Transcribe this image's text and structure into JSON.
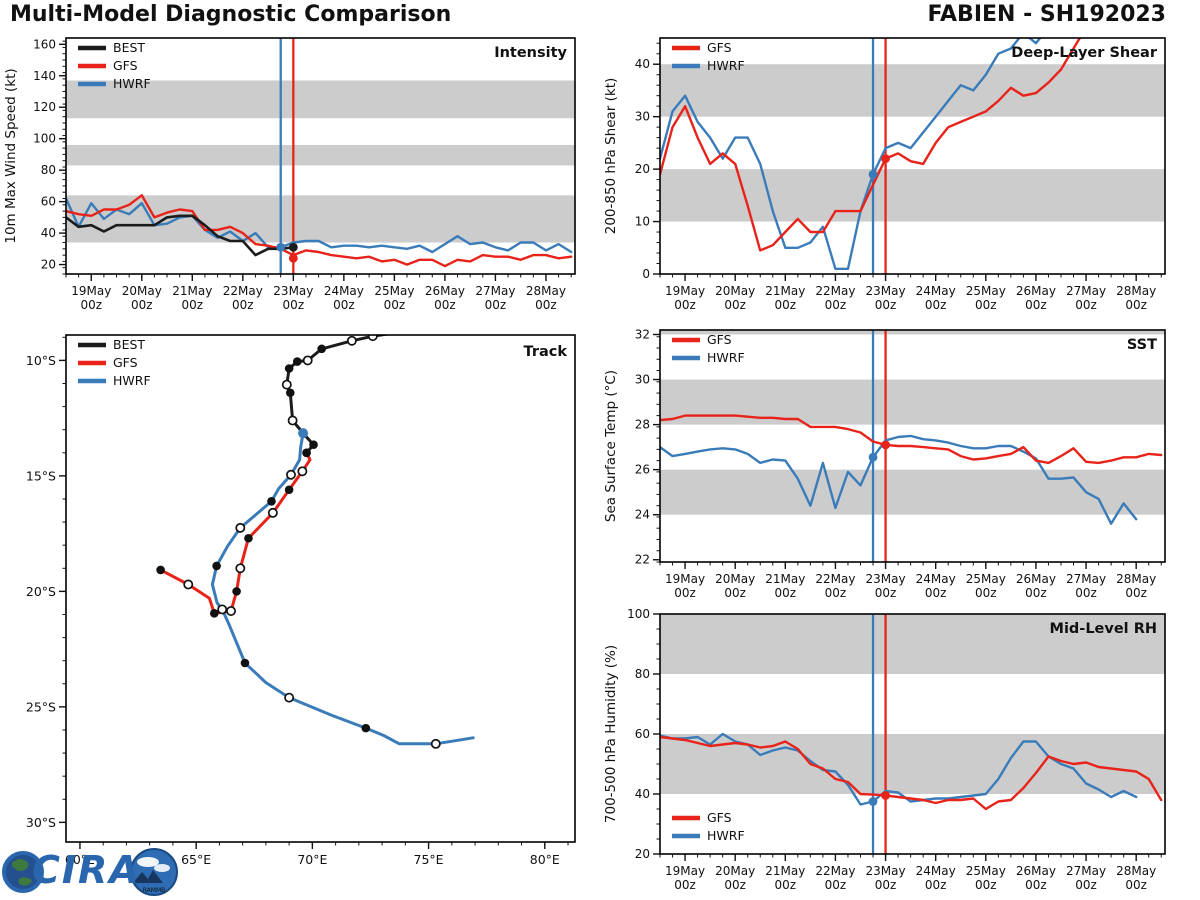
{
  "page": {
    "title": "Multi-Model Diagnostic Comparison",
    "storm_id": "FABIEN - SH192023",
    "logo": {
      "cira_text": "CIRA",
      "rammb_text": "RAMMB"
    },
    "colors": {
      "best": "#1c1c1c",
      "gfs": "#e8231a",
      "hwrf": "#3a7cba",
      "band": "#cccccc"
    }
  },
  "chart_data": [
    {
      "id": "intensity",
      "type": "line",
      "title": "Intensity",
      "ylabel": "10m Max Wind Speed (kt)",
      "xlim": [
        0,
        40.3
      ],
      "ylim": [
        14,
        164
      ],
      "yticks": [
        20,
        40,
        60,
        80,
        100,
        120,
        140,
        160
      ],
      "yminor": 4,
      "bands": [
        [
          34,
          64
        ],
        [
          83,
          96
        ],
        [
          113,
          137
        ]
      ],
      "xticks": {
        "t": [
          2,
          6,
          10,
          14,
          18,
          22,
          26,
          30,
          34,
          38
        ],
        "labels": [
          "19May",
          "20May",
          "21May",
          "22May",
          "23May",
          "24May",
          "25May",
          "26May",
          "27May",
          "28May"
        ],
        "sub": "00z",
        "minor_every": 1
      },
      "legend": {
        "pos": "top-left",
        "items": [
          {
            "label": "BEST",
            "color": "best"
          },
          {
            "label": "GFS",
            "color": "gfs"
          },
          {
            "label": "HWRF",
            "color": "hwrf"
          }
        ]
      },
      "verticals": [
        {
          "t": 17,
          "color": "hwrf"
        },
        {
          "t": 18,
          "color": "gfs"
        }
      ],
      "series": [
        {
          "name": "HWRF",
          "color": "hwrf",
          "width": 2.4,
          "values": [
            62,
            44,
            59,
            49,
            55,
            52,
            59,
            45,
            46,
            50,
            51,
            42,
            37,
            41,
            35,
            40,
            31,
            31,
            34,
            35,
            35,
            31,
            32,
            32,
            31,
            32,
            31,
            30,
            32,
            28,
            33,
            38,
            33,
            34,
            31,
            29,
            34,
            34,
            29,
            33,
            28
          ]
        },
        {
          "name": "GFS",
          "color": "gfs",
          "width": 2.4,
          "values": [
            54,
            52,
            51,
            55,
            55,
            58,
            64,
            50,
            53,
            55,
            54,
            42,
            42,
            44,
            40,
            33,
            32,
            30,
            26,
            29,
            28,
            26,
            25,
            24,
            25,
            22,
            23,
            20,
            23,
            23,
            19,
            23,
            22,
            26,
            25,
            25,
            23,
            26,
            26,
            24,
            25
          ]
        },
        {
          "name": "BEST",
          "color": "best",
          "width": 2.6,
          "values": [
            50,
            44,
            45,
            41,
            45,
            45,
            45,
            45,
            50,
            51,
            51,
            45,
            38,
            35,
            35,
            26,
            30,
            30,
            31
          ]
        }
      ],
      "dots": [
        {
          "series": "HWRF",
          "color": "hwrf",
          "t": 17,
          "v": 31
        },
        {
          "series": "GFS",
          "color": "gfs",
          "t": 18,
          "v": 24
        },
        {
          "series": "BEST",
          "color": "best",
          "t": 18,
          "v": 31
        }
      ]
    },
    {
      "id": "shear",
      "type": "line",
      "title": "Deep-Layer Shear",
      "ylabel": "200-850 hPa Shear (kt)",
      "xlim": [
        0,
        40.3
      ],
      "ylim": [
        0,
        45
      ],
      "yticks": [
        0,
        10,
        20,
        30,
        40
      ],
      "yminor": 2,
      "bands": [
        [
          10,
          20
        ],
        [
          30,
          40
        ]
      ],
      "xticks": {
        "t": [
          2,
          6,
          10,
          14,
          18,
          22,
          26,
          30,
          34,
          38
        ],
        "labels": [
          "19May",
          "20May",
          "21May",
          "22May",
          "23May",
          "24May",
          "25May",
          "26May",
          "27May",
          "28May"
        ],
        "sub": "00z",
        "minor_every": 1
      },
      "legend": {
        "pos": "top-left",
        "items": [
          {
            "label": "GFS",
            "color": "gfs"
          },
          {
            "label": "HWRF",
            "color": "hwrf"
          }
        ]
      },
      "verticals": [
        {
          "t": 17,
          "color": "hwrf"
        },
        {
          "t": 18,
          "color": "gfs"
        }
      ],
      "series": [
        {
          "name": "HWRF",
          "color": "hwrf",
          "width": 2.4,
          "values": [
            22,
            31,
            34,
            29,
            26,
            22,
            26,
            26,
            21,
            12,
            5,
            5,
            6,
            9,
            1,
            1,
            12,
            19,
            24,
            25,
            24,
            27,
            30,
            33,
            36,
            35,
            38,
            42,
            43,
            46,
            44,
            47
          ]
        },
        {
          "name": "GFS",
          "color": "gfs",
          "width": 2.4,
          "values": [
            19,
            28,
            32,
            26,
            21,
            23,
            21,
            13,
            4.5,
            5.5,
            8,
            10.5,
            8,
            8,
            12,
            12,
            12,
            17,
            22,
            23,
            21.5,
            21,
            25,
            28,
            29,
            30,
            31,
            33,
            35.5,
            34,
            34.5,
            36.5,
            39,
            43,
            47
          ]
        }
      ],
      "dots": [
        {
          "series": "HWRF",
          "color": "hwrf",
          "t": 17,
          "v": 19
        },
        {
          "series": "GFS",
          "color": "gfs",
          "t": 18,
          "v": 22
        }
      ]
    },
    {
      "id": "sst",
      "type": "line",
      "title": "SST",
      "ylabel": "Sea Surface Temp (°C)",
      "xlim": [
        0,
        40.3
      ],
      "ylim": [
        21.9,
        32.2
      ],
      "yticks": [
        22,
        24,
        26,
        28,
        30,
        32
      ],
      "yminor": 0.5,
      "bands": [
        [
          24,
          26
        ],
        [
          28,
          30
        ],
        [
          32,
          32.2
        ]
      ],
      "xticks": {
        "t": [
          2,
          6,
          10,
          14,
          18,
          22,
          26,
          30,
          34,
          38
        ],
        "labels": [
          "19May",
          "20May",
          "21May",
          "22May",
          "23May",
          "24May",
          "25May",
          "26May",
          "27May",
          "28May"
        ],
        "sub": "00z",
        "minor_every": 1
      },
      "legend": {
        "pos": "top-left",
        "items": [
          {
            "label": "GFS",
            "color": "gfs"
          },
          {
            "label": "HWRF",
            "color": "hwrf"
          }
        ]
      },
      "verticals": [
        {
          "t": 17,
          "color": "hwrf"
        },
        {
          "t": 18,
          "color": "gfs"
        }
      ],
      "series": [
        {
          "name": "HWRF",
          "color": "hwrf",
          "width": 2.4,
          "values": [
            27.0,
            26.6,
            26.7,
            26.8,
            26.9,
            26.95,
            26.9,
            26.7,
            26.3,
            26.45,
            26.4,
            25.6,
            24.4,
            26.3,
            24.3,
            25.9,
            25.3,
            26.55,
            27.3,
            27.45,
            27.5,
            27.35,
            27.3,
            27.2,
            27.05,
            26.95,
            26.95,
            27.05,
            27.05,
            26.8,
            26.5,
            25.6,
            25.6,
            25.65,
            25.0,
            24.7,
            23.6,
            24.5,
            23.8
          ]
        },
        {
          "name": "GFS",
          "color": "gfs",
          "width": 2.4,
          "values": [
            28.2,
            28.25,
            28.4,
            28.4,
            28.4,
            28.4,
            28.4,
            28.35,
            28.3,
            28.3,
            28.25,
            28.25,
            27.9,
            27.9,
            27.9,
            27.8,
            27.65,
            27.25,
            27.1,
            27.05,
            27.05,
            27.0,
            26.95,
            26.9,
            26.6,
            26.45,
            26.5,
            26.6,
            26.7,
            27.0,
            26.4,
            26.3,
            26.6,
            26.95,
            26.35,
            26.3,
            26.4,
            26.55,
            26.55,
            26.7,
            26.65
          ]
        }
      ],
      "dots": [
        {
          "series": "HWRF",
          "color": "hwrf",
          "t": 17,
          "v": 26.55
        },
        {
          "series": "GFS",
          "color": "gfs",
          "t": 18,
          "v": 27.1
        }
      ]
    },
    {
      "id": "rh",
      "type": "line",
      "title": "Mid-Level RH",
      "ylabel": "700-500 hPa Humidity (%)",
      "xlim": [
        0,
        40.3
      ],
      "ylim": [
        20,
        100
      ],
      "yticks": [
        20,
        40,
        60,
        80,
        100
      ],
      "yminor": 5,
      "bands": [
        [
          40,
          60
        ],
        [
          80,
          100
        ]
      ],
      "xticks": {
        "t": [
          2,
          6,
          10,
          14,
          18,
          22,
          26,
          30,
          34,
          38
        ],
        "labels": [
          "19May",
          "20May",
          "21May",
          "22May",
          "23May",
          "24May",
          "25May",
          "26May",
          "27May",
          "28May"
        ],
        "sub": "00z",
        "minor_every": 1
      },
      "legend": {
        "pos": "bottom-left",
        "items": [
          {
            "label": "GFS",
            "color": "gfs"
          },
          {
            "label": "HWRF",
            "color": "hwrf"
          }
        ]
      },
      "verticals": [
        {
          "t": 17,
          "color": "hwrf"
        },
        {
          "t": 18,
          "color": "gfs"
        }
      ],
      "series": [
        {
          "name": "HWRF",
          "color": "hwrf",
          "width": 2.4,
          "values": [
            59.5,
            58.5,
            58.5,
            59,
            56.5,
            60,
            57.5,
            56.5,
            53,
            54.5,
            55.5,
            54.5,
            51,
            48,
            47.5,
            43,
            36.5,
            37.5,
            41,
            40.5,
            37.5,
            38,
            38.5,
            38.5,
            39,
            39.5,
            40,
            45,
            52,
            57.5,
            57.5,
            52.5,
            50,
            48.5,
            43.5,
            41.5,
            39,
            41,
            39
          ]
        },
        {
          "name": "GFS",
          "color": "gfs",
          "width": 2.4,
          "values": [
            59,
            58.5,
            58,
            57,
            56,
            56.5,
            57,
            56.5,
            55.5,
            56,
            57.5,
            55,
            50,
            48.5,
            45,
            44,
            40,
            39.8,
            39.5,
            39,
            38.5,
            38,
            37,
            38,
            38,
            38.5,
            35,
            37.5,
            38,
            42,
            47,
            52.5,
            51,
            50,
            50.5,
            49,
            48.5,
            48,
            47.5,
            45,
            38
          ]
        }
      ],
      "dots": [
        {
          "series": "HWRF",
          "color": "hwrf",
          "t": 17,
          "v": 37.5
        },
        {
          "series": "GFS",
          "color": "gfs",
          "t": 18,
          "v": 39.5
        }
      ]
    },
    {
      "id": "track",
      "type": "track",
      "title": "Track",
      "xlim": [
        59.4,
        81.3
      ],
      "ylim": [
        8.9,
        30.85
      ],
      "xticks": [
        60,
        65,
        70,
        75,
        80
      ],
      "yticks": [
        10,
        15,
        20,
        25,
        30
      ],
      "lon_suffix": "°E",
      "lat_suffix": "°S",
      "minor_every": 1,
      "legend": {
        "pos": "top-left",
        "items": [
          {
            "label": "BEST",
            "color": "best"
          },
          {
            "label": "GFS",
            "color": "gfs"
          },
          {
            "label": "HWRF",
            "color": "hwrf"
          }
        ]
      },
      "series": [
        {
          "name": "HWRF",
          "color": "hwrf",
          "width": 3,
          "points": [
            [
              69.6,
              13.15,
              "b"
            ],
            [
              69.5,
              13.75,
              null
            ],
            [
              69.45,
              14.3,
              null
            ],
            [
              69.08,
              14.95,
              "o"
            ],
            [
              68.55,
              15.55,
              null
            ],
            [
              68.24,
              16.1,
              "f"
            ],
            [
              66.9,
              17.25,
              "o"
            ],
            [
              66.35,
              18.05,
              null
            ],
            [
              65.88,
              18.9,
              "f"
            ],
            [
              65.7,
              19.7,
              null
            ],
            [
              65.9,
              20.5,
              null
            ],
            [
              66.12,
              20.78,
              "o"
            ],
            [
              66.4,
              21.4,
              null
            ],
            [
              67.1,
              23.1,
              "f"
            ],
            [
              68.0,
              23.95,
              null
            ],
            [
              69.0,
              24.6,
              "o"
            ],
            [
              70.8,
              25.35,
              null
            ],
            [
              72.3,
              25.92,
              "f"
            ],
            [
              73.07,
              26.24,
              null
            ],
            [
              73.74,
              26.6,
              null
            ],
            [
              75.31,
              26.6,
              "o"
            ],
            [
              76.92,
              26.34,
              null
            ]
          ]
        },
        {
          "name": "GFS",
          "color": "gfs",
          "width": 3,
          "points": [
            [
              69.75,
              14.0,
              "f"
            ],
            [
              69.9,
              14.3,
              null
            ],
            [
              69.57,
              14.8,
              "o"
            ],
            [
              69.0,
              15.6,
              "f"
            ],
            [
              68.3,
              16.6,
              "o"
            ],
            [
              67.25,
              17.7,
              "f"
            ],
            [
              66.9,
              19.0,
              "o"
            ],
            [
              66.74,
              20.0,
              "f"
            ],
            [
              66.5,
              20.85,
              "o"
            ],
            [
              65.78,
              20.95,
              "f"
            ],
            [
              65.57,
              20.3,
              null
            ],
            [
              64.66,
              19.7,
              "o"
            ],
            [
              63.47,
              19.07,
              "f"
            ]
          ]
        },
        {
          "name": "BEST",
          "color": "best",
          "width": 3,
          "points": [
            [
              73.6,
              8.8,
              null
            ],
            [
              72.6,
              8.95,
              "o"
            ],
            [
              71.7,
              9.15,
              "o"
            ],
            [
              70.4,
              9.5,
              "f"
            ],
            [
              69.8,
              10.0,
              "o"
            ],
            [
              69.35,
              10.05,
              "f"
            ],
            [
              69.0,
              10.35,
              "f"
            ],
            [
              68.9,
              11.05,
              "o"
            ],
            [
              69.05,
              11.4,
              "f"
            ],
            [
              69.15,
              12.6,
              "o"
            ],
            [
              69.6,
              13.15,
              null
            ],
            [
              70.05,
              13.65,
              "f"
            ],
            [
              69.75,
              14.0,
              "f"
            ]
          ]
        }
      ]
    }
  ]
}
